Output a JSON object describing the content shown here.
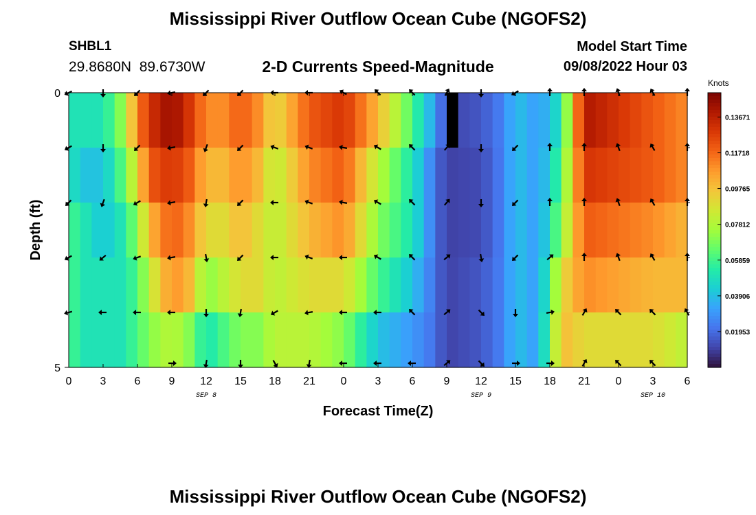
{
  "title": "Mississippi River Outflow Ocean Cube (NGOFS2)",
  "title_repeat": "Mississippi River Outflow Ocean Cube (NGOFS2)",
  "station": {
    "id": "SHBL1",
    "lat": "29.8680N",
    "lon": "89.6730W"
  },
  "subtitle": "2-D Currents Speed-Magnitude",
  "model_start": {
    "label": "Model Start Time",
    "value": "09/08/2022 Hour 03"
  },
  "chart_data": {
    "type": "heatmap",
    "title": "2-D Currents Speed-Magnitude",
    "xlabel": "Forecast Time(Z)",
    "ylabel": "Depth (ft)",
    "x_tick_labels": [
      "0",
      "3",
      "6",
      "9",
      "12",
      "15",
      "18",
      "21",
      "0",
      "3",
      "6",
      "9",
      "12",
      "15",
      "18",
      "21",
      "0",
      "3",
      "6"
    ],
    "date_labels": [
      {
        "label": "SEP 8",
        "at_tick": 4
      },
      {
        "label": "SEP 9",
        "at_tick": 12
      },
      {
        "label": "SEP 10",
        "at_tick": 17
      }
    ],
    "y_tick_labels": [
      "0",
      "5"
    ],
    "ylim": [
      0,
      5
    ],
    "colorbar": {
      "unit": "Knots",
      "ticks": [
        "0.01953",
        "0.03906",
        "0.05859",
        "0.07812",
        "0.09765",
        "0.11718",
        "0.13671"
      ],
      "range": [
        0.0,
        0.15
      ]
    },
    "colormap": [
      "#30123b",
      "#4145ab",
      "#4675ed",
      "#39a2fc",
      "#1bcfd4",
      "#24eca6",
      "#61fc6c",
      "#a4fc3b",
      "#d1e834",
      "#f3c63a",
      "#fe9b2d",
      "#f36315",
      "#d93806",
      "#b11901",
      "#7a0403"
    ],
    "depth_layers": 5,
    "time_columns": 54,
    "speed_knots_by_hour": [
      [
        0,
        [
          0.05,
          0.05,
          0.06,
          0.06,
          0.06
        ]
      ],
      [
        1.5,
        [
          0.05,
          0.04,
          0.05,
          0.05,
          0.05
        ]
      ],
      [
        3,
        [
          0.05,
          0.04,
          0.04,
          0.05,
          0.05
        ]
      ],
      [
        4.5,
        [
          0.07,
          0.06,
          0.05,
          0.05,
          0.05
        ]
      ],
      [
        6,
        [
          0.11,
          0.09,
          0.07,
          0.06,
          0.06
        ]
      ],
      [
        7,
        [
          0.13,
          0.12,
          0.1,
          0.08,
          0.07
        ]
      ],
      [
        9,
        [
          0.145,
          0.13,
          0.12,
          0.11,
          0.08
        ]
      ],
      [
        10.5,
        [
          0.13,
          0.12,
          0.11,
          0.1,
          0.07
        ]
      ],
      [
        12,
        [
          0.11,
          0.1,
          0.09,
          0.07,
          0.05
        ]
      ],
      [
        13.5,
        [
          0.11,
          0.1,
          0.09,
          0.08,
          0.06
        ]
      ],
      [
        15,
        [
          0.12,
          0.11,
          0.1,
          0.09,
          0.07
        ]
      ],
      [
        16.5,
        [
          0.11,
          0.1,
          0.09,
          0.09,
          0.07
        ]
      ],
      [
        18,
        [
          0.09,
          0.08,
          0.08,
          0.08,
          0.08
        ]
      ],
      [
        21,
        [
          0.12,
          0.11,
          0.1,
          0.09,
          0.08
        ]
      ],
      [
        24,
        [
          0.13,
          0.12,
          0.11,
          0.09,
          0.07
        ]
      ],
      [
        27,
        [
          0.1,
          0.08,
          0.07,
          0.06,
          0.04
        ]
      ],
      [
        30,
        [
          0.06,
          0.05,
          0.05,
          0.04,
          0.03
        ]
      ],
      [
        32,
        [
          0.03,
          0.02,
          0.02,
          0.02,
          0.02
        ]
      ],
      [
        33,
        [
          0.01,
          0.01,
          0.01,
          0.01,
          0.01
        ]
      ],
      [
        36,
        [
          0.015,
          0.012,
          0.012,
          0.015,
          0.015
        ]
      ],
      [
        38,
        [
          0.025,
          0.025,
          0.025,
          0.025,
          0.025
        ]
      ],
      [
        39,
        [
          0.04,
          0.04,
          0.04,
          0.04,
          0.04
        ]
      ],
      [
        41,
        [
          0.03,
          0.03,
          0.03,
          0.03,
          0.03
        ]
      ],
      [
        43,
        [
          0.05,
          0.06,
          0.07,
          0.09,
          0.1
        ]
      ],
      [
        45,
        [
          0.14,
          0.13,
          0.12,
          0.11,
          0.09
        ]
      ],
      [
        51,
        [
          0.12,
          0.12,
          0.11,
          0.1,
          0.09
        ]
      ],
      [
        54,
        [
          0.11,
          0.11,
          0.1,
          0.1,
          0.08
        ]
      ]
    ],
    "masked_cells": [
      {
        "hour": 33.5,
        "layer": 0
      }
    ],
    "arrow_times": [
      0,
      3,
      6,
      9,
      12,
      15,
      18,
      21,
      24,
      27,
      30,
      33,
      36,
      39,
      42,
      45,
      48,
      51,
      54
    ],
    "arrow_depths_ft": [
      0,
      1,
      2,
      3,
      4,
      5
    ],
    "arrow_direction_deg_by_time": [
      [
        155,
        150,
        135,
        150,
        165,
        180
      ],
      [
        90,
        90,
        110,
        140,
        180,
        180
      ],
      [
        135,
        135,
        150,
        160,
        180,
        180
      ],
      [
        170,
        170,
        170,
        170,
        180,
        0
      ],
      [
        135,
        110,
        100,
        80,
        90,
        100
      ],
      [
        135,
        135,
        135,
        135,
        100,
        90
      ],
      [
        180,
        200,
        180,
        180,
        150,
        60
      ],
      [
        180,
        200,
        200,
        200,
        170,
        100
      ],
      [
        210,
        190,
        190,
        180,
        180,
        180
      ],
      [
        225,
        210,
        210,
        210,
        180,
        180
      ],
      [
        225,
        225,
        225,
        225,
        225,
        180
      ],
      [
        300,
        310,
        310,
        320,
        320,
        320
      ],
      [
        90,
        90,
        90,
        80,
        45,
        45
      ],
      [
        150,
        135,
        135,
        135,
        90,
        0
      ],
      [
        270,
        270,
        270,
        320,
        350,
        0
      ],
      [
        270,
        270,
        270,
        270,
        300,
        300
      ],
      [
        250,
        250,
        250,
        250,
        225,
        225
      ],
      [
        240,
        240,
        240,
        240,
        225,
        225
      ],
      [
        270,
        270,
        270,
        270,
        240,
        240
      ]
    ]
  }
}
